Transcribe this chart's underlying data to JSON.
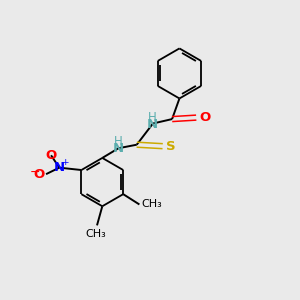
{
  "background_color": "#eaeaea",
  "bond_color": "#000000",
  "atom_colors": {
    "N": "#5aadad",
    "O": "#ff0000",
    "S": "#ccaa00",
    "N_nitro": "#0000ff",
    "O_nitro": "#ff0000",
    "C": "#000000",
    "H": "#5aadad"
  },
  "figsize": [
    3.0,
    3.0
  ],
  "dpi": 100
}
